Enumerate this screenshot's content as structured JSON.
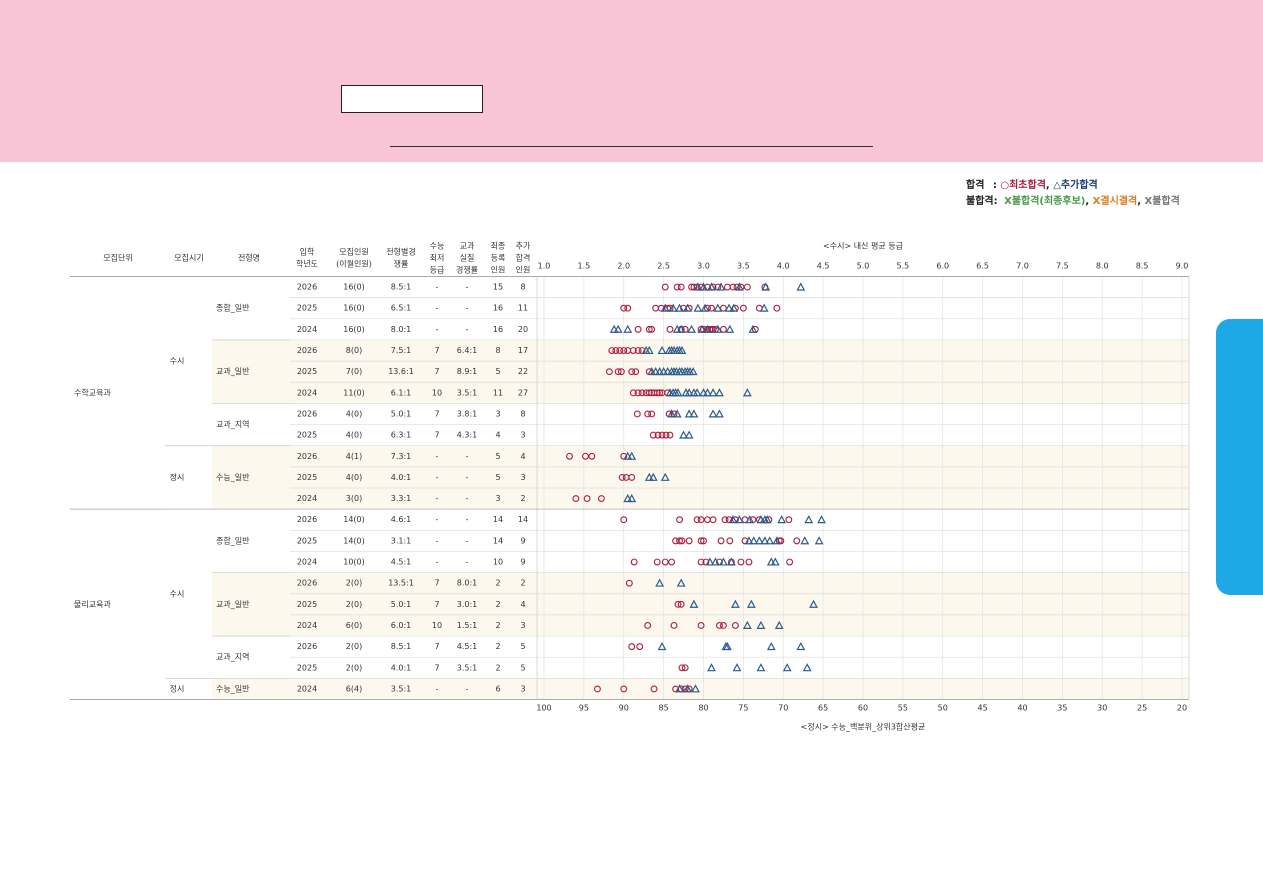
{
  "legend": {
    "pass_label": "합격",
    "pass_sep": ":",
    "first_sym": "○",
    "first_text": "최초합격",
    "comma": ",",
    "add_sym": "△",
    "add_text": "추가합격",
    "fail_label": "불합격:",
    "x": "X",
    "fail1_text": "불합격(최종후보)",
    "fail2_text": "결시결격",
    "fail3_text": "불합격"
  },
  "colors": {
    "first": "#b01c3e",
    "added": "#2d5c8a",
    "band": "#fdf8ee",
    "grid": "#e3e3e3"
  },
  "headers": {
    "unit": [
      "모집단위"
    ],
    "period": [
      "모집시기"
    ],
    "type": [
      "전형명"
    ],
    "year": [
      "입학",
      "학년도"
    ],
    "quota": [
      "모집인원",
      "(이월인원)"
    ],
    "comp": [
      "전형별경",
      "쟁률"
    ],
    "min": [
      "수능",
      "최저",
      "등급"
    ],
    "real": [
      "교과",
      "실질",
      "경쟁률"
    ],
    "final": [
      "최종",
      "등록",
      "인원"
    ],
    "addn": [
      "추가",
      "합격",
      "인원"
    ],
    "top_axis_title": "<수시> 내신 평균 등급",
    "bottom_axis_title": "<정시> 수능_백분위_상위3합산평균"
  },
  "groups": [
    {
      "unit": "수학교육과",
      "periods": [
        {
          "period": "수시",
          "types": [
            {
              "type": "종합_일반",
              "rows": [
                0,
                1,
                2
              ]
            },
            {
              "type": "교과_일반",
              "rows": [
                3,
                4,
                5
              ]
            },
            {
              "type": "교과_지역",
              "rows": [
                6,
                7
              ]
            }
          ]
        },
        {
          "period": "정시",
          "types": [
            {
              "type": "수능_일반",
              "rows": [
                8,
                9,
                10
              ]
            }
          ]
        }
      ]
    },
    {
      "unit": "물리교육과",
      "periods": [
        {
          "period": "수시",
          "types": [
            {
              "type": "종합_일반",
              "rows": [
                11,
                12,
                13
              ]
            },
            {
              "type": "교과_일반",
              "rows": [
                14,
                15,
                16
              ]
            },
            {
              "type": "교과_지역",
              "rows": [
                17,
                18
              ]
            }
          ]
        },
        {
          "period": "정시",
          "types": [
            {
              "type": "수능_일반",
              "rows": [
                19
              ]
            }
          ]
        }
      ]
    }
  ],
  "rows": [
    {
      "year": "2026",
      "quota": "16(0)",
      "comp": "8.5:1",
      "min": "-",
      "real": "-",
      "final": "15",
      "addn": "8"
    },
    {
      "year": "2025",
      "quota": "16(0)",
      "comp": "6.5:1",
      "min": "-",
      "real": "-",
      "final": "16",
      "addn": "11"
    },
    {
      "year": "2024",
      "quota": "16(0)",
      "comp": "8.0:1",
      "min": "-",
      "real": "-",
      "final": "16",
      "addn": "20"
    },
    {
      "year": "2026",
      "quota": "8(0)",
      "comp": "7.5:1",
      "min": "7",
      "real": "6.4:1",
      "final": "8",
      "addn": "17"
    },
    {
      "year": "2025",
      "quota": "7(0)",
      "comp": "13.6:1",
      "min": "7",
      "real": "8.9:1",
      "final": "5",
      "addn": "22"
    },
    {
      "year": "2024",
      "quota": "11(0)",
      "comp": "6.1:1",
      "min": "10",
      "real": "3.5:1",
      "final": "11",
      "addn": "27"
    },
    {
      "year": "2026",
      "quota": "4(0)",
      "comp": "5.0:1",
      "min": "7",
      "real": "3.8:1",
      "final": "3",
      "addn": "8"
    },
    {
      "year": "2025",
      "quota": "4(0)",
      "comp": "6.3:1",
      "min": "7",
      "real": "4.3:1",
      "final": "4",
      "addn": "3"
    },
    {
      "year": "2026",
      "quota": "4(1)",
      "comp": "7.3:1",
      "min": "-",
      "real": "-",
      "final": "5",
      "addn": "4"
    },
    {
      "year": "2025",
      "quota": "4(0)",
      "comp": "4.0:1",
      "min": "-",
      "real": "-",
      "final": "5",
      "addn": "3"
    },
    {
      "year": "2024",
      "quota": "3(0)",
      "comp": "3.3:1",
      "min": "-",
      "real": "-",
      "final": "3",
      "addn": "2"
    },
    {
      "year": "2026",
      "quota": "14(0)",
      "comp": "4.6:1",
      "min": "-",
      "real": "-",
      "final": "14",
      "addn": "14"
    },
    {
      "year": "2025",
      "quota": "14(0)",
      "comp": "3.1:1",
      "min": "-",
      "real": "-",
      "final": "14",
      "addn": "9"
    },
    {
      "year": "2024",
      "quota": "10(0)",
      "comp": "4.5:1",
      "min": "-",
      "real": "-",
      "final": "10",
      "addn": "9"
    },
    {
      "year": "2026",
      "quota": "2(0)",
      "comp": "13.5:1",
      "min": "7",
      "real": "8.0:1",
      "final": "2",
      "addn": "2"
    },
    {
      "year": "2025",
      "quota": "2(0)",
      "comp": "5.0:1",
      "min": "7",
      "real": "3.0:1",
      "final": "2",
      "addn": "4"
    },
    {
      "year": "2024",
      "quota": "6(0)",
      "comp": "6.0:1",
      "min": "10",
      "real": "1.5:1",
      "final": "2",
      "addn": "3"
    },
    {
      "year": "2026",
      "quota": "2(0)",
      "comp": "8.5:1",
      "min": "7",
      "real": "4.5:1",
      "final": "2",
      "addn": "5"
    },
    {
      "year": "2025",
      "quota": "2(0)",
      "comp": "4.0:1",
      "min": "7",
      "real": "3.5:1",
      "final": "2",
      "addn": "5"
    },
    {
      "year": "2024",
      "quota": "6(4)",
      "comp": "3.5:1",
      "min": "-",
      "real": "-",
      "final": "6",
      "addn": "3"
    }
  ],
  "chart_data": {
    "type": "scatter",
    "top_axis": {
      "title": "<수시> 내신 평균 등급",
      "ticks": [
        "1.0",
        "1.5",
        "2.0",
        "2.5",
        "3.0",
        "3.5",
        "4.0",
        "4.5",
        "5.0",
        "5.5",
        "6.0",
        "6.5",
        "7.0",
        "7.5",
        "8.0",
        "8.5",
        "9.0"
      ],
      "range": [
        1.0,
        9.0
      ]
    },
    "bottom_axis": {
      "title": "<정시> 수능_백분위_상위3합산평균",
      "ticks": [
        "100",
        "95",
        "90",
        "85",
        "80",
        "75",
        "70",
        "65",
        "60",
        "55",
        "50",
        "45",
        "40",
        "35",
        "30",
        "25",
        "20"
      ],
      "range": [
        100,
        20
      ]
    },
    "series": [
      {
        "name": "최초합격",
        "marker": "circle"
      },
      {
        "name": "추가합격",
        "marker": "triangle"
      }
    ],
    "rows": [
      {
        "unit": "수학교육과",
        "period": "수시",
        "type": "종합_일반",
        "year": "2026",
        "scale": "grade",
        "first": [
          2.52,
          2.67,
          2.72,
          2.85,
          2.88,
          2.92,
          2.97,
          3.05,
          3.12,
          3.18,
          3.3,
          3.37,
          3.42,
          3.47,
          3.55,
          3.77
        ],
        "added": [
          2.93,
          3.0,
          3.1,
          3.22,
          3.45,
          3.78,
          4.22
        ]
      },
      {
        "unit": "수학교육과",
        "period": "수시",
        "type": "종합_일반",
        "year": "2025",
        "scale": "grade",
        "first": [
          2.0,
          2.05,
          2.4,
          2.47,
          2.55,
          2.58,
          2.75,
          2.82,
          3.05,
          3.1,
          3.25,
          3.4,
          3.5,
          3.7,
          3.92
        ],
        "added": [
          2.52,
          2.62,
          2.7,
          2.8,
          2.93,
          3.02,
          3.18,
          3.32,
          3.38,
          3.76
        ]
      },
      {
        "unit": "수학교육과",
        "period": "수시",
        "type": "종합_일반",
        "year": "2024",
        "scale": "grade",
        "first": [
          2.18,
          2.32,
          2.35,
          2.58,
          2.72,
          2.77,
          2.97,
          3.0,
          3.05,
          3.08,
          3.1,
          3.12,
          3.15,
          3.25,
          3.65
        ],
        "added": [
          1.88,
          1.93,
          2.05,
          2.67,
          2.72,
          2.85,
          2.98,
          3.05,
          3.18,
          3.33,
          3.62
        ]
      },
      {
        "unit": "수학교육과",
        "period": "수시",
        "type": "교과_일반",
        "year": "2026",
        "scale": "grade",
        "first": [
          1.85,
          1.9,
          1.95,
          2.0,
          2.05,
          2.12,
          2.18,
          2.23
        ],
        "added": [
          2.28,
          2.32,
          2.48,
          2.57,
          2.6,
          2.63,
          2.67,
          2.7,
          2.73
        ]
      },
      {
        "unit": "수학교육과",
        "period": "수시",
        "type": "교과_일반",
        "year": "2025",
        "scale": "grade",
        "first": [
          1.82,
          1.93,
          1.97,
          2.1,
          2.15,
          2.32
        ],
        "added": [
          2.35,
          2.4,
          2.45,
          2.5,
          2.55,
          2.6,
          2.63,
          2.66,
          2.7,
          2.73,
          2.77,
          2.8,
          2.83,
          2.87
        ]
      },
      {
        "unit": "수학교육과",
        "period": "수시",
        "type": "교과_일반",
        "year": "2024",
        "scale": "grade",
        "first": [
          2.12,
          2.18,
          2.23,
          2.28,
          2.32,
          2.35,
          2.38,
          2.42,
          2.45,
          2.48,
          2.55
        ],
        "added": [
          2.58,
          2.62,
          2.65,
          2.68,
          2.78,
          2.82,
          2.88,
          2.92,
          3.0,
          3.05,
          3.12,
          3.2,
          3.55
        ]
      },
      {
        "unit": "수학교육과",
        "period": "수시",
        "type": "교과_지역",
        "year": "2026",
        "scale": "grade",
        "first": [
          2.17,
          2.3,
          2.35,
          2.57,
          2.63
        ],
        "added": [
          2.6,
          2.67,
          2.82,
          2.88,
          3.12,
          3.2
        ]
      },
      {
        "unit": "수학교육과",
        "period": "수시",
        "type": "교과_지역",
        "year": "2025",
        "scale": "grade",
        "first": [
          2.37,
          2.43,
          2.48,
          2.53,
          2.58
        ],
        "added": [
          2.75,
          2.82
        ]
      },
      {
        "unit": "수학교육과",
        "period": "정시",
        "type": "수능_일반",
        "year": "2026",
        "scale": "score",
        "first": [
          96.8,
          94.8,
          94.0,
          90.0
        ],
        "added": [
          89.5,
          89.0
        ]
      },
      {
        "unit": "수학교육과",
        "period": "정시",
        "type": "수능_일반",
        "year": "2025",
        "scale": "score",
        "first": [
          90.2,
          89.7,
          89.0
        ],
        "added": [
          86.8,
          86.3,
          84.8
        ]
      },
      {
        "unit": "수학교육과",
        "period": "정시",
        "type": "수능_일반",
        "year": "2024",
        "scale": "score",
        "first": [
          96.0,
          94.6,
          92.8
        ],
        "added": [
          89.5,
          89.0
        ]
      },
      {
        "unit": "물리교육과",
        "period": "수시",
        "type": "종합_일반",
        "year": "2026",
        "scale": "grade",
        "first": [
          2.0,
          2.7,
          2.92,
          2.97,
          3.05,
          3.12,
          3.27,
          3.32,
          3.4,
          3.52,
          3.62,
          3.7,
          3.82,
          4.07
        ],
        "added": [
          3.37,
          3.45,
          3.58,
          3.72,
          3.77,
          3.8,
          3.98,
          4.32,
          4.48
        ]
      },
      {
        "unit": "물리교육과",
        "period": "수시",
        "type": "종합_일반",
        "year": "2025",
        "scale": "grade",
        "first": [
          2.65,
          2.7,
          2.73,
          2.82,
          2.97,
          3.0,
          3.22,
          3.33,
          3.52,
          3.95,
          3.97,
          4.17
        ],
        "added": [
          3.57,
          3.63,
          3.7,
          3.77,
          3.83,
          3.92,
          4.27,
          4.45
        ]
      },
      {
        "unit": "물리교육과",
        "period": "수시",
        "type": "종합_일반",
        "year": "2024",
        "scale": "grade",
        "first": [
          2.13,
          2.42,
          2.52,
          2.6,
          2.97,
          3.03,
          3.2,
          3.35,
          3.47,
          3.57,
          4.08
        ],
        "added": [
          3.08,
          3.15,
          3.25,
          3.35,
          3.85,
          3.9
        ]
      },
      {
        "unit": "물리교육과",
        "period": "수시",
        "type": "교과_일반",
        "year": "2026",
        "scale": "grade",
        "first": [
          2.07
        ],
        "added": [
          2.45,
          2.72
        ]
      },
      {
        "unit": "물리교육과",
        "period": "수시",
        "type": "교과_일반",
        "year": "2025",
        "scale": "grade",
        "first": [
          2.68,
          2.72
        ],
        "added": [
          2.88,
          3.4,
          3.6,
          4.38
        ]
      },
      {
        "unit": "물리교육과",
        "period": "수시",
        "type": "교과_일반",
        "year": "2024",
        "scale": "grade",
        "first": [
          2.3,
          2.63,
          2.97,
          3.2,
          3.25,
          3.4
        ],
        "added": [
          3.55,
          3.72,
          3.95
        ]
      },
      {
        "unit": "물리교육과",
        "period": "수시",
        "type": "교과_지역",
        "year": "2026",
        "scale": "grade",
        "first": [
          2.1,
          2.2
        ],
        "added": [
          2.48,
          3.28,
          3.3,
          3.85,
          4.22
        ]
      },
      {
        "unit": "물리교육과",
        "period": "수시",
        "type": "교과_지역",
        "year": "2025",
        "scale": "grade",
        "first": [
          2.73,
          2.77
        ],
        "added": [
          3.1,
          3.42,
          3.72,
          4.05,
          4.3
        ]
      },
      {
        "unit": "물리교육과",
        "period": "정시",
        "type": "수능_일반",
        "year": "2024",
        "scale": "score",
        "first": [
          93.3,
          90.0,
          86.2,
          83.5,
          82.8,
          82.3,
          81.8
        ],
        "added": [
          83.0,
          82.0,
          81.0
        ]
      }
    ]
  }
}
